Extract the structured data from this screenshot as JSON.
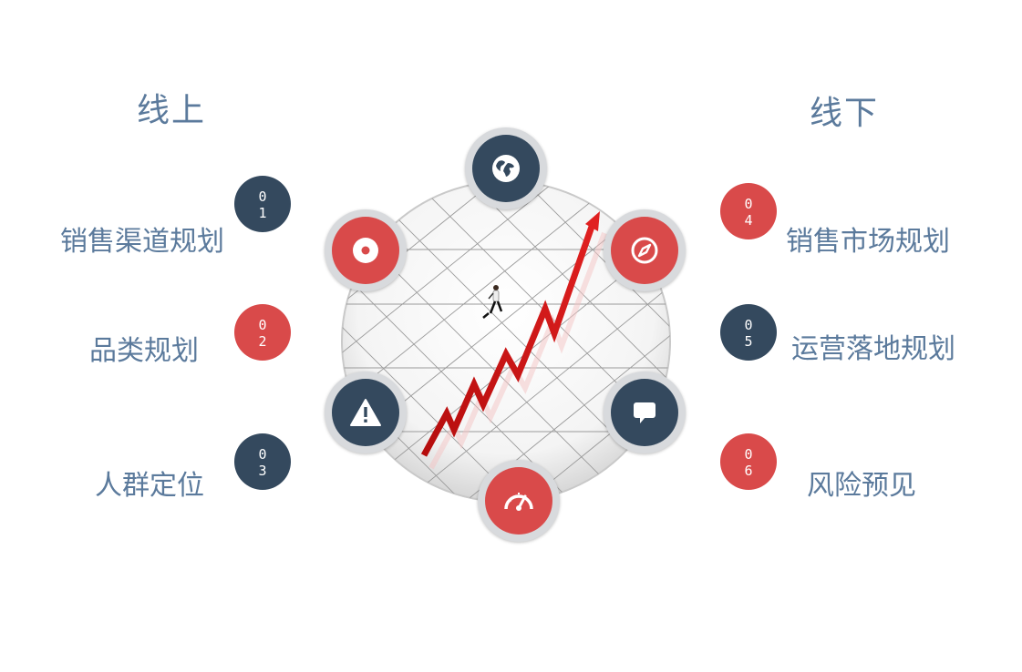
{
  "online": {
    "heading": "线上",
    "items": [
      {
        "label": "销售渠道规划",
        "digits": [
          "0",
          "1"
        ]
      },
      {
        "label": "品类规划",
        "digits": [
          "0",
          "2"
        ]
      },
      {
        "label": "人群定位",
        "digits": [
          "0",
          "3"
        ]
      }
    ]
  },
  "offline": {
    "heading": "线下",
    "items": [
      {
        "label": "销售市场规划",
        "digits": [
          "0",
          "4"
        ]
      },
      {
        "label": "运营落地规划",
        "digits": [
          "0",
          "5"
        ]
      },
      {
        "label": "风险预见",
        "digits": [
          "0",
          "6"
        ]
      }
    ]
  },
  "nodes": [
    {
      "icon": "globe-icon",
      "color": "#34495e"
    },
    {
      "icon": "compass-icon",
      "color": "#d94a4a"
    },
    {
      "icon": "chat-bubble-icon",
      "color": "#34495e"
    },
    {
      "icon": "speedometer-icon",
      "color": "#d94a4a"
    },
    {
      "icon": "warning-icon",
      "color": "#34495e"
    },
    {
      "icon": "record-icon",
      "color": "#d94a4a"
    }
  ],
  "colors": {
    "dark": "#34495e",
    "red": "#d94a4a",
    "text": "#5b7a9c"
  }
}
